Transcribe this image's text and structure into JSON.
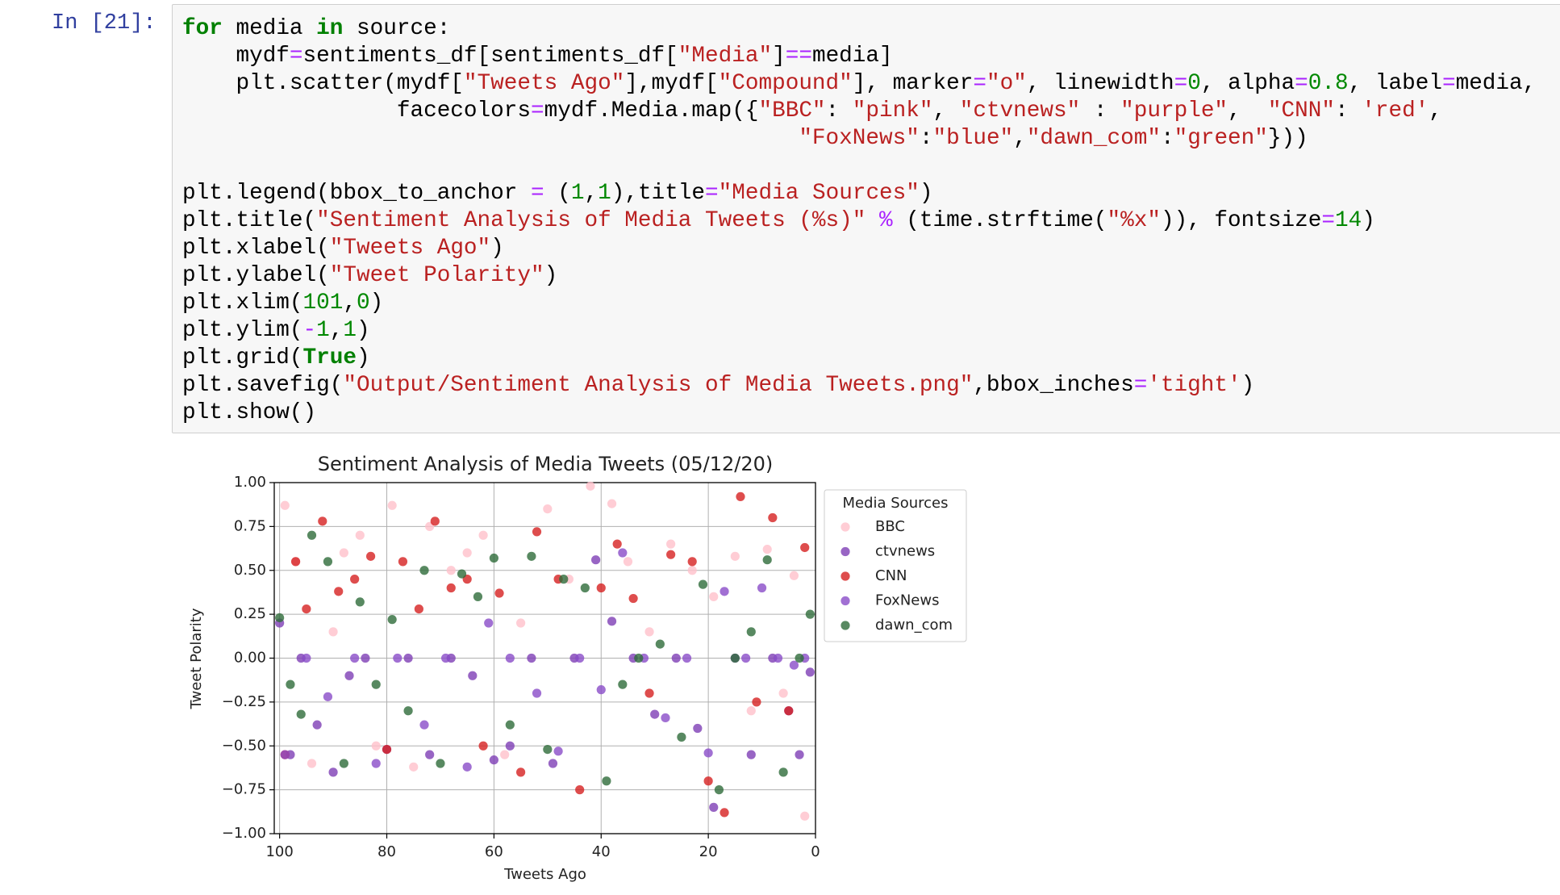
{
  "cell": {
    "prompt": "In [21]:",
    "code": [
      "for media in source:",
      "    mydf=sentiments_df[sentiments_df[\"Media\"]==media]",
      "    plt.scatter(mydf[\"Tweets Ago\"],mydf[\"Compound\"], marker=\"o\", linewidth=0, alpha=0.8, label=media,",
      "                facecolors=mydf.Media.map({\"BBC\": \"pink\", \"ctvnews\" : \"purple\",  \"CNN\": 'red',",
      "                                              \"FoxNews\":\"blue\",\"dawn_com\":\"green\"}))",
      "plt.legend(bbox_to_anchor = (1,1),title=\"Media Sources\")",
      "plt.title(\"Sentiment Analysis of Media Tweets (%s)\" % (time.strftime(\"%x\")), fontsize=14)",
      "plt.xlabel(\"Tweets Ago\")",
      "plt.ylabel(\"Tweet Polarity\")",
      "plt.xlim(101,0)",
      "plt.ylim(-1,1)",
      "plt.grid(True)",
      "plt.savefig(\"Output/Sentiment Analysis of Media Tweets.png\",bbox_inches='tight')",
      "plt.show()"
    ]
  },
  "chart_data": {
    "type": "scatter",
    "title": "Sentiment Analysis of Media Tweets (05/12/20)",
    "x_label": "Tweets Ago",
    "y_label": "Tweet Polarity",
    "legend_title": "Media Sources",
    "legend": "outside-right",
    "grid": true,
    "alpha": 0.8,
    "xlim": [
      101,
      0
    ],
    "xticks": [
      100,
      80,
      60,
      40,
      20,
      0
    ],
    "ylim": [
      -1,
      1
    ],
    "yticks": [
      {
        "value": -1,
        "label": "−1.00"
      },
      {
        "value": -0.75,
        "label": "−0.75"
      },
      {
        "value": -0.5,
        "label": "−0.50"
      },
      {
        "value": -0.25,
        "label": "−0.25"
      },
      {
        "value": 0,
        "label": "0.00"
      },
      {
        "value": 0.25,
        "label": "0.25"
      },
      {
        "value": 0.5,
        "label": "0.50"
      },
      {
        "value": 0.75,
        "label": "0.75"
      },
      {
        "value": 1,
        "label": "1.00"
      }
    ],
    "series": [
      {
        "name": "BBC",
        "color": "#ffc0cb",
        "x": [
          99,
          97,
          94,
          90,
          88,
          85,
          82,
          79,
          75,
          72,
          68,
          65,
          62,
          58,
          55,
          50,
          46,
          42,
          38,
          35,
          31,
          27,
          23,
          19,
          15,
          12,
          9,
          6,
          4,
          2
        ],
        "values": [
          0.87,
          0.55,
          -0.6,
          0.15,
          0.6,
          0.7,
          -0.5,
          0.87,
          -0.62,
          0.75,
          0.5,
          0.6,
          0.7,
          -0.55,
          0.2,
          0.85,
          0.45,
          0.98,
          0.88,
          0.55,
          0.15,
          0.65,
          0.5,
          0.35,
          0.58,
          -0.3,
          0.62,
          -0.2,
          0.47,
          -0.9
        ]
      },
      {
        "name": "ctvnews",
        "color": "#7e3fb5",
        "x": [
          100,
          98,
          96,
          93,
          90,
          87,
          84,
          80,
          76,
          72,
          68,
          64,
          60,
          57,
          53,
          49,
          45,
          41,
          38,
          34,
          30,
          26,
          22,
          19,
          15,
          12,
          8,
          5,
          3,
          1
        ],
        "values": [
          0.2,
          -0.55,
          0,
          -0.38,
          -0.65,
          -0.1,
          0,
          -0.52,
          0,
          -0.55,
          0,
          -0.1,
          -0.58,
          -0.5,
          0,
          -0.6,
          0,
          0.56,
          0.21,
          0,
          -0.32,
          0,
          -0.4,
          -0.85,
          0,
          -0.55,
          0,
          -0.3,
          -0.55,
          -0.08
        ]
      },
      {
        "name": "CNN",
        "color": "#d62020",
        "x": [
          99,
          97,
          95,
          92,
          89,
          86,
          83,
          80,
          77,
          74,
          71,
          68,
          65,
          62,
          59,
          55,
          52,
          48,
          44,
          40,
          37,
          34,
          31,
          27,
          23,
          20,
          17,
          14,
          11,
          8,
          5,
          2
        ],
        "values": [
          -0.55,
          0.55,
          0.28,
          0.78,
          0.38,
          0.45,
          0.58,
          -0.52,
          0.55,
          0.28,
          0.78,
          0.4,
          0.45,
          -0.5,
          0.37,
          -0.65,
          0.72,
          0.45,
          -0.75,
          0.4,
          0.65,
          0.34,
          -0.2,
          0.59,
          0.55,
          -0.7,
          -0.88,
          0.92,
          -0.25,
          0.8,
          -0.3,
          0.63
        ]
      },
      {
        "name": "FoxNews",
        "color": "#8a4cc8",
        "x": [
          99,
          95,
          91,
          86,
          82,
          78,
          73,
          69,
          65,
          61,
          57,
          52,
          48,
          44,
          40,
          36,
          32,
          28,
          24,
          20,
          17,
          13,
          10,
          7,
          4,
          2
        ],
        "values": [
          -0.55,
          0,
          -0.22,
          0,
          -0.6,
          0,
          -0.38,
          0,
          -0.62,
          0.2,
          0,
          -0.2,
          -0.53,
          0,
          -0.18,
          0.6,
          0,
          -0.34,
          0,
          -0.54,
          0.38,
          0,
          0.4,
          0,
          -0.04,
          0
        ]
      },
      {
        "name": "dawn_com",
        "color": "#2e6b3a",
        "x": [
          100,
          98,
          96,
          94,
          91,
          88,
          85,
          82,
          79,
          76,
          73,
          70,
          66,
          63,
          60,
          57,
          53,
          50,
          47,
          43,
          39,
          36,
          33,
          29,
          25,
          21,
          18,
          15,
          12,
          9,
          6,
          3,
          1
        ],
        "values": [
          0.23,
          -0.15,
          -0.32,
          0.7,
          0.55,
          -0.6,
          0.32,
          -0.15,
          0.22,
          -0.3,
          0.5,
          -0.6,
          0.48,
          0.35,
          0.57,
          -0.38,
          0.58,
          -0.52,
          0.45,
          0.4,
          -0.7,
          -0.15,
          0,
          0.08,
          -0.45,
          0.42,
          -0.75,
          0,
          0.15,
          0.56,
          -0.65,
          0,
          0.25
        ]
      }
    ]
  }
}
